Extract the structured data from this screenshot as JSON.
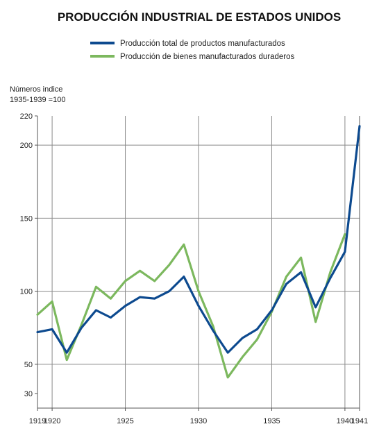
{
  "chart_data": {
    "type": "line",
    "title": "PRODUCCIÓN INDUSTRIAL DE ESTADOS UNIDOS",
    "ylabel_line1": "Números indice",
    "ylabel_line2": "1935-1939 =100",
    "xlabel": "",
    "xlim": [
      1919,
      1941
    ],
    "ylim": [
      30,
      220
    ],
    "y_ticks": [
      220,
      200,
      150,
      100,
      50,
      30
    ],
    "x_ticks": [
      1919,
      1920,
      1925,
      1930,
      1935,
      1940,
      1941
    ],
    "x_gridlines": [
      1920,
      1925,
      1930,
      1935,
      1940
    ],
    "y_gridlines": [
      50,
      100,
      150,
      200
    ],
    "legend_position": "top-center",
    "x": [
      1919,
      1920,
      1921,
      1922,
      1923,
      1924,
      1925,
      1926,
      1927,
      1928,
      1929,
      1930,
      1931,
      1932,
      1933,
      1934,
      1935,
      1936,
      1937,
      1938,
      1939,
      1940,
      1941
    ],
    "series": [
      {
        "name": "Producción total de productos manufacturados",
        "color": "#0d4a8f",
        "values": [
          72,
          74,
          58,
          75,
          87,
          82,
          90,
          96,
          95,
          100,
          110,
          90,
          73,
          58,
          68,
          74,
          87,
          105,
          113,
          89,
          109,
          127,
          213
        ]
      },
      {
        "name": "Producción de bienes manufacturados duraderos",
        "color": "#7cb85e",
        "values": [
          84,
          93,
          53,
          77,
          103,
          95,
          107,
          114,
          107,
          118,
          132,
          100,
          76,
          41,
          55,
          67,
          86,
          110,
          123,
          79,
          113,
          139,
          null
        ]
      }
    ]
  }
}
